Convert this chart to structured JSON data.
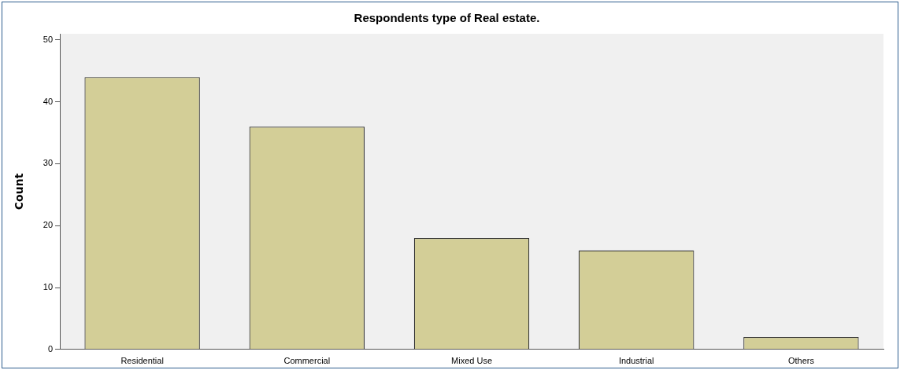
{
  "chart_data": {
    "type": "bar",
    "title": "Respondents type of Real estate.",
    "ylabel": "Count",
    "categories": [
      "Residential",
      "Commercial",
      "Mixed Use",
      "Industrial",
      "Others"
    ],
    "values": [
      44,
      36,
      18,
      16,
      2
    ],
    "color": "#d3ce97",
    "ylim": [
      0,
      51
    ],
    "yticks": [
      0,
      10,
      20,
      30,
      40,
      50
    ]
  }
}
